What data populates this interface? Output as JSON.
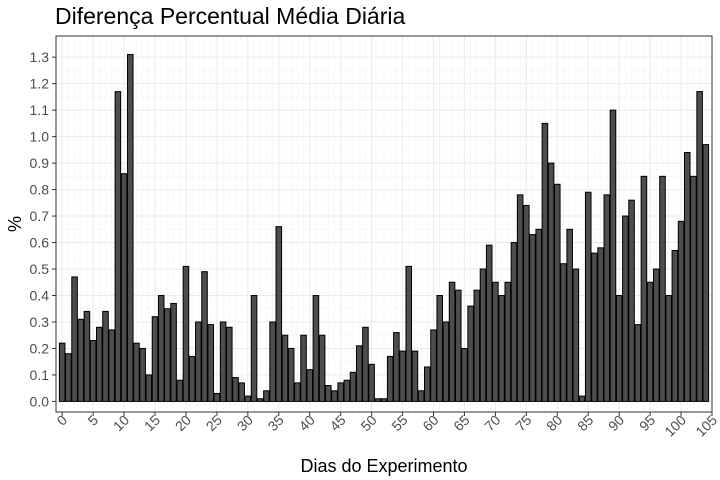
{
  "chart_data": {
    "type": "bar",
    "title": "Diferença Percentual Média Diária",
    "xlabel": "Dias do Experimento",
    "ylabel": "%",
    "xlim": [
      -1,
      105
    ],
    "ylim": [
      -0.04,
      1.38
    ],
    "x_ticks": [
      0,
      5,
      10,
      15,
      20,
      25,
      30,
      35,
      40,
      45,
      50,
      55,
      60,
      65,
      70,
      75,
      80,
      85,
      90,
      95,
      100,
      105
    ],
    "y_ticks": [
      0.0,
      0.1,
      0.2,
      0.3,
      0.4,
      0.5,
      0.6,
      0.7,
      0.8,
      0.9,
      1.0,
      1.1,
      1.2,
      1.3
    ],
    "y_tick_labels": [
      "0.0",
      "0.1",
      "0.2",
      "0.3",
      "0.4",
      "0.5",
      "0.6",
      "0.7",
      "0.8",
      "0.9",
      "1.0",
      "1.1",
      "1.2",
      "1.3"
    ],
    "grid": true,
    "bar_color": "#4d4d4d",
    "bar_outline": "#000000",
    "x": [
      0,
      1,
      2,
      3,
      4,
      5,
      6,
      7,
      8,
      9,
      10,
      11,
      12,
      13,
      14,
      15,
      16,
      17,
      18,
      19,
      20,
      21,
      22,
      23,
      24,
      25,
      26,
      27,
      28,
      29,
      30,
      31,
      32,
      33,
      34,
      35,
      36,
      37,
      38,
      39,
      40,
      41,
      42,
      43,
      44,
      45,
      46,
      47,
      48,
      49,
      50,
      51,
      52,
      53,
      54,
      55,
      56,
      57,
      58,
      59,
      60,
      61,
      62,
      63,
      64,
      65,
      66,
      67,
      68,
      69,
      70,
      71,
      72,
      73,
      74,
      75,
      76,
      77,
      78,
      79,
      80,
      81,
      82,
      83,
      84,
      85,
      86,
      87,
      88,
      89,
      90,
      91,
      92,
      93,
      94,
      95,
      96,
      97,
      98,
      99,
      100,
      101,
      102,
      103,
      104
    ],
    "values": [
      0.22,
      0.18,
      0.47,
      0.31,
      0.34,
      0.23,
      0.28,
      0.34,
      0.27,
      1.17,
      0.86,
      1.31,
      0.22,
      0.2,
      0.1,
      0.32,
      0.4,
      0.35,
      0.37,
      0.08,
      0.51,
      0.17,
      0.3,
      0.49,
      0.29,
      0.03,
      0.3,
      0.28,
      0.09,
      0.07,
      0.02,
      0.4,
      0.01,
      0.04,
      0.3,
      0.66,
      0.25,
      0.2,
      0.07,
      0.25,
      0.12,
      0.4,
      0.25,
      0.06,
      0.04,
      0.07,
      0.08,
      0.11,
      0.21,
      0.28,
      0.14,
      0.01,
      0.01,
      0.17,
      0.26,
      0.19,
      0.51,
      0.19,
      0.04,
      0.13,
      0.27,
      0.4,
      0.3,
      0.45,
      0.42,
      0.2,
      0.36,
      0.42,
      0.5,
      0.59,
      0.45,
      0.4,
      0.45,
      0.6,
      0.78,
      0.74,
      0.63,
      0.65,
      1.05,
      0.9,
      0.82,
      0.52,
      0.65,
      0.5,
      0.02,
      0.79,
      0.56,
      0.58,
      0.78,
      1.1,
      0.4,
      0.7,
      0.76,
      0.29,
      0.85,
      0.45,
      0.5,
      0.85,
      0.4,
      0.57,
      0.68,
      0.94,
      0.85,
      1.17,
      0.97
    ]
  }
}
